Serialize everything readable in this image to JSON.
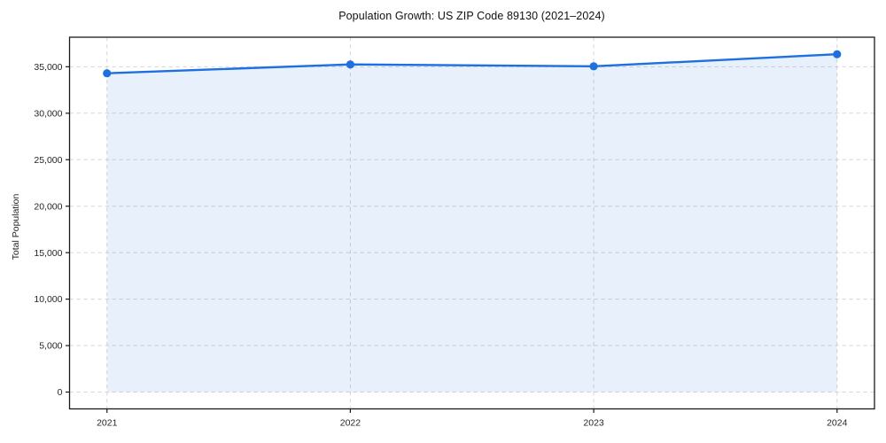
{
  "figure": {
    "title": "Population Growth: US ZIP Code 89130 (2021–2024)"
  },
  "chart_data": {
    "type": "area",
    "title": "Population Growth: US ZIP Code 89130 (2021–2024)",
    "xlabel": "",
    "ylabel": "Total Population",
    "x": [
      "2021",
      "2022",
      "2023",
      "2024"
    ],
    "series": [
      {
        "name": "Total Population",
        "values": [
          34300,
          35250,
          35050,
          36350
        ]
      }
    ],
    "ylim": [
      -1810,
      38180
    ],
    "yticks": [
      0,
      5000,
      10000,
      15000,
      20000,
      25000,
      30000,
      35000
    ],
    "grid": true,
    "grid_style": "dashed",
    "legend": false,
    "marker": "circle",
    "colors": {
      "line": "#1e6fe0",
      "fill": "rgba(30, 111, 224, 0.10)",
      "grid": "#d7d7d7",
      "spine": "#1a1a1a",
      "tick_text": "#262626"
    }
  }
}
